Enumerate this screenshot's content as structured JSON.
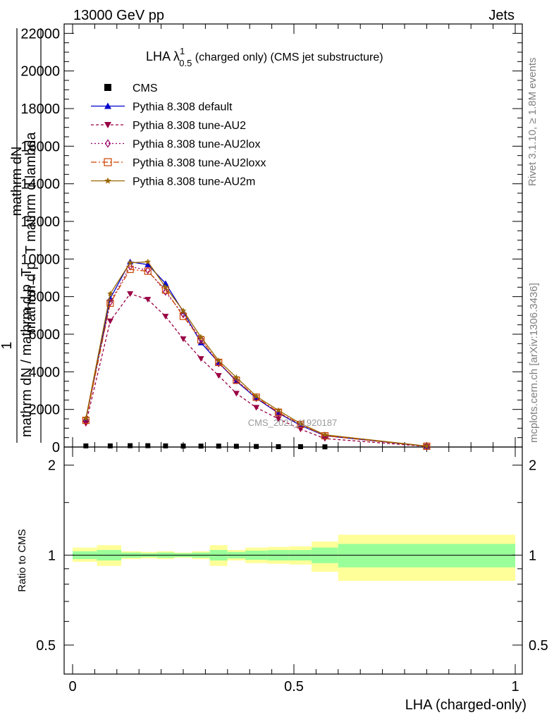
{
  "header": {
    "left": "13000 GeV pp",
    "right": "Jets"
  },
  "side_labels": {
    "rivet": "Rivet 3.1.10, ≥ 1.8M events",
    "mcplots": "mcplots.cern.ch [arXiv:1306.3436]"
  },
  "watermark": "CMS_2021_I1920187",
  "chart_data": [
    {
      "type": "line",
      "title_main": "LHA λ",
      "title_sup": "1",
      "title_sub": "0.5",
      "title_rest": " (charged only) (CMS jet substructure)",
      "ylabel_top": "mathrm dN",
      "ylabel_mid": "mathrm d p_T mathrm d lambda",
      "ylabel_one": "1",
      "ylabel_bottom": "mathrm dN / mathrm d p_T",
      "xlim": [
        0,
        1
      ],
      "ylim": [
        0,
        22500
      ],
      "y_ticks": [
        0,
        2000,
        4000,
        6000,
        8000,
        10000,
        12000,
        14000,
        16000,
        18000,
        20000,
        22000
      ],
      "y_tick_labels": [
        "0",
        "2000",
        "4000",
        "6000",
        "8000",
        "10000",
        "12000",
        "14000",
        "16000",
        "18000",
        "20000",
        "22000"
      ],
      "x": [
        0.03,
        0.085,
        0.13,
        0.17,
        0.21,
        0.25,
        0.29,
        0.33,
        0.37,
        0.415,
        0.465,
        0.515,
        0.57,
        0.8
      ],
      "series": [
        {
          "name": "CMS",
          "color": "#000000",
          "marker": "square",
          "dash": "",
          "values": [
            60,
            60,
            70,
            70,
            60,
            50,
            50,
            50,
            40,
            30,
            20,
            20,
            10,
            null
          ]
        },
        {
          "name": "Pythia 8.308 default",
          "color": "#0000cc",
          "marker": "triangle-up",
          "dash": "",
          "values": [
            1480,
            7900,
            9850,
            9700,
            8700,
            7200,
            5550,
            4500,
            3500,
            2600,
            1800,
            1150,
            600,
            40
          ]
        },
        {
          "name": "Pythia 8.308 tune-AU2",
          "color": "#990044",
          "marker": "triangle-down",
          "dash": "4,3",
          "values": [
            1250,
            6700,
            8150,
            7850,
            6950,
            5750,
            4700,
            3800,
            2850,
            2100,
            1500,
            950,
            450,
            30
          ]
        },
        {
          "name": "Pythia 8.308 tune-AU2lox",
          "color": "#990066",
          "marker": "diamond",
          "dash": "2,3",
          "values": [
            1450,
            7700,
            9600,
            9400,
            8250,
            7050,
            5750,
            4450,
            3550,
            2600,
            1800,
            1200,
            600,
            40
          ]
        },
        {
          "name": "Pythia 8.308 tune-AU2loxx",
          "color": "#cc4400",
          "marker": "square-open",
          "dash": "8,3,2,3",
          "values": [
            1420,
            7650,
            9450,
            9350,
            8350,
            6950,
            5700,
            4500,
            3550,
            2650,
            1850,
            1200,
            600,
            40
          ]
        },
        {
          "name": "Pythia 8.308 tune-AU2m",
          "color": "#996600",
          "marker": "star",
          "dash": "",
          "values": [
            1520,
            8150,
            9800,
            9850,
            8500,
            7250,
            5850,
            4600,
            3700,
            2700,
            1950,
            1250,
            650,
            50
          ]
        }
      ]
    },
    {
      "type": "area",
      "ylabel": "Ratio to CMS",
      "xlabel": "LHA (charged-only)",
      "xlim": [
        0,
        1
      ],
      "ylim": [
        0.4,
        2.3
      ],
      "y_scale": "log",
      "y_ticks": [
        0.5,
        1,
        2
      ],
      "y_tick_labels": [
        "0.5",
        "1",
        "2"
      ],
      "x_ticks": [
        0,
        0.5,
        1
      ],
      "x_tick_labels": [
        "0",
        "0.5",
        "1"
      ],
      "reference_line": 1,
      "bins": [
        0,
        0.055,
        0.11,
        0.155,
        0.19,
        0.23,
        0.27,
        0.31,
        0.35,
        0.39,
        0.44,
        0.49,
        0.54,
        0.6,
        1.0
      ],
      "band_inner_color": "#99ff99",
      "band_outer_color": "#ffff99",
      "band_inner": [
        [
          0.97,
          1.03
        ],
        [
          0.96,
          1.04
        ],
        [
          0.98,
          1.02
        ],
        [
          0.985,
          1.015
        ],
        [
          0.98,
          1.02
        ],
        [
          0.985,
          1.015
        ],
        [
          0.98,
          1.02
        ],
        [
          0.96,
          1.04
        ],
        [
          0.975,
          1.025
        ],
        [
          0.965,
          1.035
        ],
        [
          0.96,
          1.04
        ],
        [
          0.96,
          1.04
        ],
        [
          0.94,
          1.06
        ],
        [
          0.91,
          1.09
        ]
      ],
      "band_outer": [
        [
          0.95,
          1.06
        ],
        [
          0.92,
          1.08
        ],
        [
          0.97,
          1.03
        ],
        [
          0.975,
          1.025
        ],
        [
          0.97,
          1.03
        ],
        [
          0.98,
          1.02
        ],
        [
          0.97,
          1.03
        ],
        [
          0.92,
          1.08
        ],
        [
          0.96,
          1.04
        ],
        [
          0.94,
          1.06
        ],
        [
          0.935,
          1.065
        ],
        [
          0.93,
          1.07
        ],
        [
          0.88,
          1.11
        ],
        [
          0.82,
          1.17
        ]
      ]
    }
  ]
}
